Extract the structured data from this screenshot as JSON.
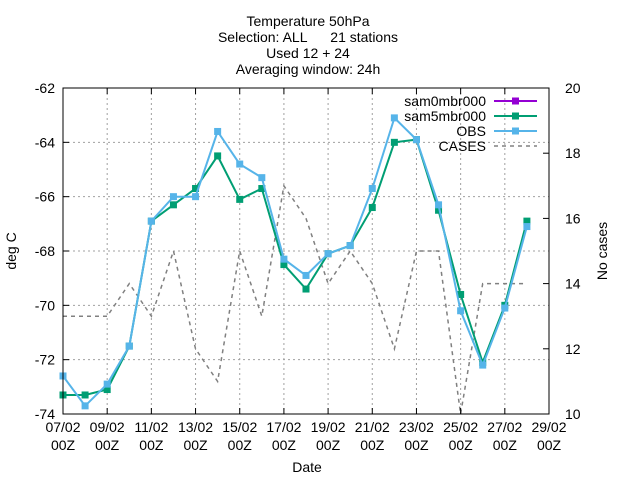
{
  "chart_data": {
    "type": "line",
    "title_lines": [
      "Temperature 50hPa",
      "Selection: ALL      21 stations",
      "Used 12 + 24",
      "Averaging window: 24h"
    ],
    "xlabel": "Date",
    "ylabel": "deg C",
    "y2label": "No cases",
    "ylim": [
      -74,
      -62
    ],
    "yticks": [
      -74,
      -72,
      -70,
      -68,
      -66,
      -64,
      -62
    ],
    "y2lim": [
      10,
      20
    ],
    "y2ticks": [
      10,
      12,
      14,
      16,
      18,
      20
    ],
    "xlim": [
      0,
      22
    ],
    "xticks": [
      {
        "x": 0,
        "l1": "07/02",
        "l2": "00Z"
      },
      {
        "x": 2,
        "l1": "09/02",
        "l2": "00Z"
      },
      {
        "x": 4,
        "l1": "11/02",
        "l2": "00Z"
      },
      {
        "x": 6,
        "l1": "13/02",
        "l2": "00Z"
      },
      {
        "x": 8,
        "l1": "15/02",
        "l2": "00Z"
      },
      {
        "x": 10,
        "l1": "17/02",
        "l2": "00Z"
      },
      {
        "x": 12,
        "l1": "19/02",
        "l2": "00Z"
      },
      {
        "x": 14,
        "l1": "21/02",
        "l2": "00Z"
      },
      {
        "x": 16,
        "l1": "23/02",
        "l2": "00Z"
      },
      {
        "x": 18,
        "l1": "25/02",
        "l2": "00Z"
      },
      {
        "x": 20,
        "l1": "27/02",
        "l2": "00Z"
      },
      {
        "x": 22,
        "l1": "29/02",
        "l2": "00Z"
      }
    ],
    "grid": true,
    "legend_position": "top-right",
    "series": [
      {
        "name": "sam0mbr000",
        "color": "#9400d3",
        "marker": "square",
        "axis": "left",
        "x": [],
        "values": []
      },
      {
        "name": "sam5mbr000",
        "color": "#009e73",
        "marker": "square",
        "axis": "left",
        "x": [
          0,
          1,
          2,
          3,
          4,
          5,
          6,
          7,
          8,
          9,
          10,
          11,
          12,
          13,
          14,
          15,
          16,
          17,
          18,
          19,
          20,
          21
        ],
        "values": [
          -73.3,
          -73.3,
          -73.1,
          -71.5,
          -66.9,
          -66.3,
          -65.7,
          -64.5,
          -66.1,
          -65.7,
          -68.5,
          -69.4,
          -68.1,
          -67.8,
          -66.4,
          -64.0,
          -63.9,
          -66.5,
          -69.6,
          -72.1,
          -70.0,
          -66.9
        ]
      },
      {
        "name": "OBS",
        "color": "#56b4e9",
        "marker": "square",
        "axis": "left",
        "x": [
          0,
          1,
          2,
          3,
          4,
          5,
          6,
          7,
          8,
          9,
          10,
          11,
          12,
          13,
          14,
          15,
          16,
          17,
          18,
          19,
          20,
          21
        ],
        "values": [
          -72.6,
          -73.7,
          -72.9,
          -71.5,
          -66.9,
          -66.0,
          -66.0,
          -63.6,
          -64.8,
          -65.3,
          -68.3,
          -68.9,
          -68.1,
          -67.8,
          -65.7,
          -63.1,
          -63.9,
          -66.3,
          -70.2,
          -72.2,
          -70.1,
          -67.1
        ]
      },
      {
        "name": "CASES",
        "color": "#808080",
        "marker": "none",
        "dashed": true,
        "axis": "right",
        "x": [
          0,
          1,
          2,
          3,
          4,
          5,
          6,
          7,
          8,
          9,
          10,
          11,
          12,
          13,
          14,
          15,
          16,
          17,
          18,
          19,
          20,
          21
        ],
        "values": [
          13,
          13,
          13,
          14,
          13,
          15,
          12,
          11,
          15,
          13,
          17,
          16,
          14,
          15,
          14,
          12,
          15,
          15,
          10,
          14,
          14,
          14
        ]
      }
    ]
  }
}
